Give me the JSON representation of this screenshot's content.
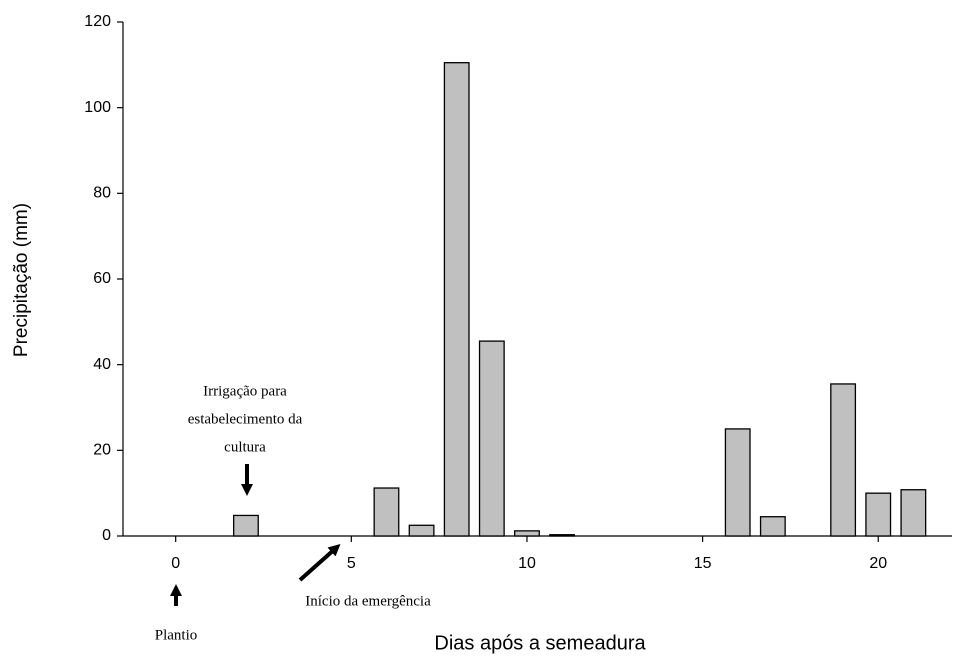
{
  "chart_data": {
    "type": "bar",
    "x_label": "Dias após a semeadura",
    "y_label": "Precipitação (mm)",
    "x": [
      0,
      1,
      2,
      3,
      4,
      5,
      6,
      7,
      8,
      9,
      10,
      11,
      12,
      13,
      14,
      15,
      16,
      17,
      18,
      19,
      20,
      21
    ],
    "values": [
      0,
      0,
      4.8,
      0,
      0,
      0,
      11.2,
      2.5,
      110.5,
      45.5,
      1.2,
      0.3,
      0,
      0,
      0,
      0,
      25,
      4.5,
      0,
      35.5,
      10,
      10.8
    ],
    "color": "#c0c0c0",
    "xlim": [
      -1.5,
      22.1
    ],
    "xticks": [
      0,
      5,
      10,
      15,
      20
    ],
    "ylim": [
      0,
      120
    ],
    "yticks": [
      0,
      20,
      40,
      60,
      80,
      100,
      120
    ],
    "annotations": {
      "irrigation": [
        "Irrigação para",
        "estabelecimento da",
        "cultura"
      ],
      "emergence": "Início da emergência",
      "planting": "Plantio"
    }
  }
}
